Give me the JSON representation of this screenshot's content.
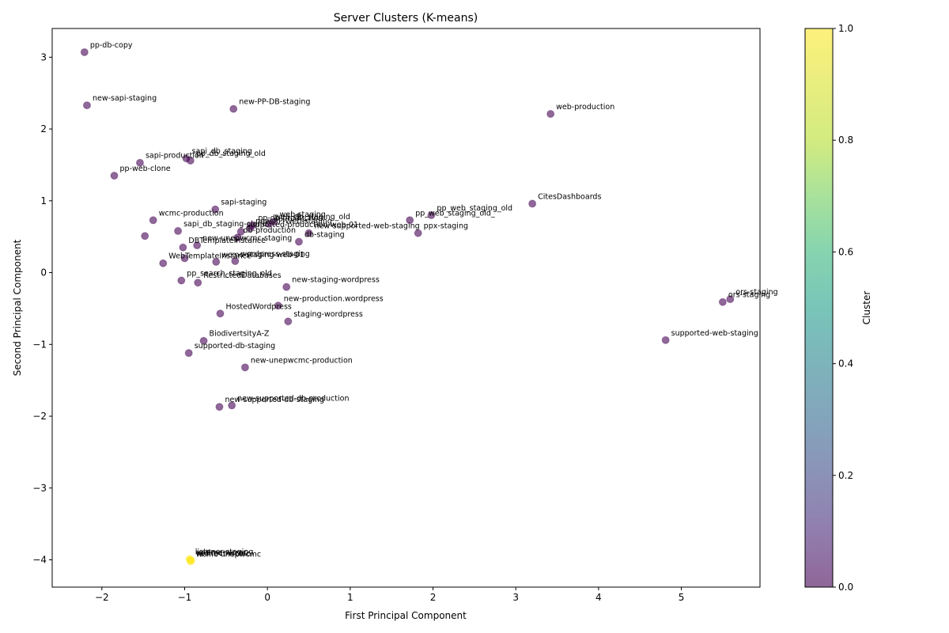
{
  "chart_data": {
    "type": "scatter",
    "title": "Server Clusters (K-means)",
    "xlabel": "First Principal Component",
    "ylabel": "Second Principal Component",
    "xlim": [
      -2.6,
      5.95
    ],
    "ylim": [
      -4.38,
      3.4
    ],
    "xticks": [
      -2,
      -1,
      0,
      1,
      2,
      3,
      4,
      5
    ],
    "yticks": [
      -4,
      -3,
      -2,
      -1,
      0,
      1,
      2,
      3
    ],
    "grid": false,
    "colorbar": {
      "label": "Cluster",
      "min": 0.0,
      "max": 1.0,
      "ticks": [
        "0.0",
        "0.2",
        "0.4",
        "0.6",
        "0.8",
        "1.0"
      ],
      "colormap": "viridis"
    },
    "cluster_colors": {
      "0": "#440154",
      "1": "#fde725"
    },
    "point_alpha": 0.6,
    "points": [
      {
        "label": "pp-db-copy",
        "x": -2.21,
        "y": 3.07,
        "cluster": 0
      },
      {
        "label": "new-sapi-staging",
        "x": -2.18,
        "y": 2.33,
        "cluster": 0
      },
      {
        "label": "new-PP-DB-staging",
        "x": -0.41,
        "y": 2.28,
        "cluster": 0
      },
      {
        "label": "web-production",
        "x": 3.42,
        "y": 2.21,
        "cluster": 0
      },
      {
        "label": "sapi-production",
        "x": -1.54,
        "y": 1.53,
        "cluster": 0
      },
      {
        "label": "sapi_db_staging",
        "x": -0.98,
        "y": 1.59,
        "cluster": 0
      },
      {
        "label": "pp_db_staging_old",
        "x": -0.93,
        "y": 1.56,
        "cluster": 0
      },
      {
        "label": "pp-web-clone",
        "x": -1.85,
        "y": 1.35,
        "cluster": 0
      },
      {
        "label": "CitesDashboards",
        "x": 3.2,
        "y": 0.96,
        "cluster": 0
      },
      {
        "label": "sapi-staging",
        "x": -0.63,
        "y": 0.88,
        "cluster": 0
      },
      {
        "label": "pp_web_staging_old",
        "x": 1.98,
        "y": 0.8,
        "cluster": 0
      },
      {
        "label": "pp_web_staging_old_",
        "x": 1.72,
        "y": 0.73,
        "cluster": 0
      },
      {
        "label": "wcmc-production",
        "x": -1.38,
        "y": 0.73,
        "cluster": 0
      },
      {
        "label": "web-staging",
        "x": 0.08,
        "y": 0.71,
        "cluster": 0
      },
      {
        "label": "web_db_staging_old",
        "x": 0.02,
        "y": 0.68,
        "cluster": 0
      },
      {
        "label": "pp-db-production",
        "x": -0.18,
        "y": 0.66,
        "cluster": 0
      },
      {
        "label": "new-PP-Web-staging",
        "x": -0.21,
        "y": 0.62,
        "cluster": 0
      },
      {
        "label": "sapi_db_staging-clone",
        "x": -1.08,
        "y": 0.58,
        "cluster": 0
      },
      {
        "label": "new-supported-web-staging",
        "x": 0.5,
        "y": 0.55,
        "cluster": 0
      },
      {
        "label": "supported-production-web-01",
        "x": -0.32,
        "y": 0.57,
        "cluster": 0
      },
      {
        "label": "ppx-staging",
        "x": 1.82,
        "y": 0.55,
        "cluster": 0
      },
      {
        "label": "db-staging",
        "x": 0.38,
        "y": 0.43,
        "cluster": 0
      },
      {
        "label": "sapi_db_staging-clone-2",
        "x": -1.48,
        "y": 0.51,
        "cluster": 0
      },
      {
        "label": "db-production",
        "x": -0.36,
        "y": 0.49,
        "cluster": 0
      },
      {
        "label": "new-unepwcmc-staging",
        "x": -0.85,
        "y": 0.38,
        "cluster": 0
      },
      {
        "label": "DBTemplateInstance",
        "x": -1.02,
        "y": 0.35,
        "cluster": 0
      },
      {
        "label": "WebTemplateInstance",
        "x": -1.0,
        "y": 0.2,
        "cluster": 0
      },
      {
        "label": "wcmc-staging-web-01",
        "x": -0.62,
        "y": 0.15,
        "cluster": 0
      },
      {
        "label": "wordpress-staging",
        "x": -0.39,
        "y": 0.16,
        "cluster": 0
      },
      {
        "label": "WebTemplateInstance-2",
        "x": -1.26,
        "y": 0.13,
        "cluster": 0
      },
      {
        "label": "pp_search_staging_old",
        "x": -1.04,
        "y": -0.11,
        "cluster": 0
      },
      {
        "label": "RestrictedDatabases",
        "x": -0.84,
        "y": -0.14,
        "cluster": 0
      },
      {
        "label": "new-staging-wordpress",
        "x": 0.23,
        "y": -0.2,
        "cluster": 0
      },
      {
        "label": "ors-staging",
        "x": 5.59,
        "y": -0.37,
        "cluster": 0
      },
      {
        "label": "ors-staging ",
        "x": 5.5,
        "y": -0.41,
        "cluster": 0
      },
      {
        "label": "new-production.wordpress",
        "x": 0.13,
        "y": -0.46,
        "cluster": 0
      },
      {
        "label": "HostedWordpress",
        "x": -0.57,
        "y": -0.57,
        "cluster": 0
      },
      {
        "label": "staging-wordpress",
        "x": 0.25,
        "y": -0.68,
        "cluster": 0
      },
      {
        "label": "supported-web-staging",
        "x": 4.81,
        "y": -0.94,
        "cluster": 0
      },
      {
        "label": "BiodivertsityA-Z",
        "x": -0.77,
        "y": -0.95,
        "cluster": 0
      },
      {
        "label": "supported-db-staging",
        "x": -0.95,
        "y": -1.12,
        "cluster": 0
      },
      {
        "label": "new-unepwcmc-production",
        "x": -0.27,
        "y": -1.32,
        "cluster": 0
      },
      {
        "label": "new-supported-db-production",
        "x": -0.43,
        "y": -1.85,
        "cluster": 0
      },
      {
        "label": "new-supported-db-staging",
        "x": -0.58,
        "y": -1.87,
        "cluster": 0
      },
      {
        "label": "listener-staging",
        "x": -0.94,
        "y": -3.99,
        "cluster": 1
      },
      {
        "label": "uptime-wcmc",
        "x": -0.93,
        "y": -4.0,
        "cluster": 1
      },
      {
        "label": "redirect-wcmc",
        "x": -0.92,
        "y": -4.01,
        "cluster": 1
      },
      {
        "label": "wcmc-unepwcmc",
        "x": -0.93,
        "y": -4.02,
        "cluster": 1
      }
    ],
    "labels": [
      {
        "text": "pp-db-copy",
        "x": -2.21,
        "y": 3.07
      },
      {
        "text": "new-sapi-staging",
        "x": -2.18,
        "y": 2.33
      },
      {
        "text": "new-PP-DB-staging",
        "x": -0.41,
        "y": 2.28
      },
      {
        "text": "web-production",
        "x": 3.42,
        "y": 2.21
      },
      {
        "text": "sapi-production",
        "x": -1.54,
        "y": 1.53
      },
      {
        "text": "sapi_db_staging",
        "x": -0.98,
        "y": 1.59
      },
      {
        "text": "pp_db_staging_old",
        "x": -0.93,
        "y": 1.56
      },
      {
        "text": "pp-web-clone",
        "x": -1.85,
        "y": 1.35
      },
      {
        "text": "CitesDashboards",
        "x": 3.2,
        "y": 0.96
      },
      {
        "text": "sapi-staging",
        "x": -0.63,
        "y": 0.88
      },
      {
        "text": "pp_web_staging_old",
        "x": 1.98,
        "y": 0.8
      },
      {
        "text": "pp_web_staging_old_",
        "x": 1.72,
        "y": 0.73
      },
      {
        "text": "wcmc-production",
        "x": -1.38,
        "y": 0.73
      },
      {
        "text": "web-staging",
        "x": 0.08,
        "y": 0.71
      },
      {
        "text": "web_db_staging_old",
        "x": 0.02,
        "y": 0.68
      },
      {
        "text": "pp-db-production",
        "x": -0.18,
        "y": 0.66
      },
      {
        "text": "new-PP-Web-staging",
        "x": -0.21,
        "y": 0.62
      },
      {
        "text": "sapi_db_staging-clone",
        "x": -1.08,
        "y": 0.58
      },
      {
        "text": "new-supported-web-staging",
        "x": 0.5,
        "y": 0.55
      },
      {
        "text": "supported-production-web-01",
        "x": -0.32,
        "y": 0.57
      },
      {
        "text": "ppx-staging",
        "x": 1.82,
        "y": 0.55
      },
      {
        "text": "db-staging",
        "x": 0.38,
        "y": 0.43
      },
      {
        "text": "db-production",
        "x": -0.36,
        "y": 0.49
      },
      {
        "text": "new-unepwcmc-staging",
        "x": -0.85,
        "y": 0.38
      },
      {
        "text": "DBTemplateInstance",
        "x": -1.02,
        "y": 0.35
      },
      {
        "text": "WebTemplateInstance",
        "x": -1.26,
        "y": 0.13
      },
      {
        "text": "wcmc-staging-web-01",
        "x": -0.62,
        "y": 0.15
      },
      {
        "text": "wordpress-staging",
        "x": -0.39,
        "y": 0.16
      },
      {
        "text": "pp_search_staging_old",
        "x": -1.04,
        "y": -0.11
      },
      {
        "text": "RestrictedDatabases",
        "x": -0.84,
        "y": -0.14
      },
      {
        "text": "new-staging-wordpress",
        "x": 0.23,
        "y": -0.2
      },
      {
        "text": "ors-staging",
        "x": 5.59,
        "y": -0.37
      },
      {
        "text": "ors-staging",
        "x": 5.5,
        "y": -0.41
      },
      {
        "text": "new-production.wordpress",
        "x": 0.13,
        "y": -0.46
      },
      {
        "text": "HostedWordpress",
        "x": -0.57,
        "y": -0.57
      },
      {
        "text": "staging-wordpress",
        "x": 0.25,
        "y": -0.68
      },
      {
        "text": "supported-web-staging",
        "x": 4.81,
        "y": -0.94
      },
      {
        "text": "BiodivertsityA-Z",
        "x": -0.77,
        "y": -0.95
      },
      {
        "text": "supported-db-staging",
        "x": -0.95,
        "y": -1.12
      },
      {
        "text": "new-unepwcmc-production",
        "x": -0.27,
        "y": -1.32
      },
      {
        "text": "new-supported-db-production",
        "x": -0.43,
        "y": -1.85
      },
      {
        "text": "new-supported-db-staging",
        "x": -0.58,
        "y": -1.87
      },
      {
        "text": "listener-staging",
        "x": -0.94,
        "y": -3.99
      },
      {
        "text": "uptime-wcmc",
        "x": -0.93,
        "y": -4.0
      },
      {
        "text": "redirect-wcmc",
        "x": -0.92,
        "y": -4.01
      },
      {
        "text": "wcmc-unepwcmc",
        "x": -0.93,
        "y": -4.02
      }
    ]
  }
}
